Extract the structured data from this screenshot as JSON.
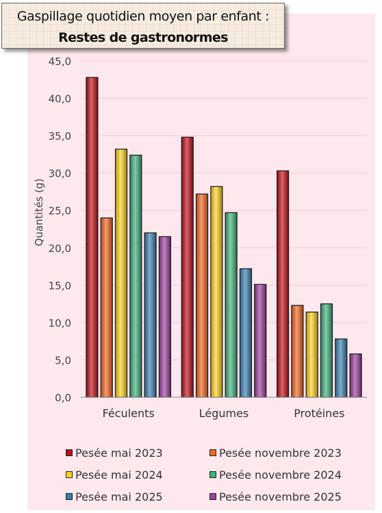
{
  "title": {
    "line1": "Gaspillage quotidien moyen par enfant :",
    "line2": "Restes de gastronormes"
  },
  "colors": {
    "plot_bg": "#fde8ee",
    "series": [
      "#c0101a",
      "#f26522",
      "#ffd21f",
      "#3fb07a",
      "#3a7fb0",
      "#9d3fa0"
    ]
  },
  "chart_data": {
    "type": "bar",
    "categories": [
      "Féculents",
      "Légumes",
      "Protéines"
    ],
    "ylabel": "Quantités (g)",
    "ylim": [
      0,
      45
    ],
    "yticks": [
      "0,0",
      "5,0",
      "10,0",
      "15,0",
      "20,0",
      "25,0",
      "30,0",
      "35,0",
      "40,0",
      "45,0"
    ],
    "grid": true,
    "legend_position": "bottom",
    "series": [
      {
        "name": "Pesée mai 2023",
        "values": [
          42.8,
          34.8,
          30.3
        ]
      },
      {
        "name": "Pesée novembre 2023",
        "values": [
          24.0,
          27.2,
          12.3
        ]
      },
      {
        "name": "Pesée mai 2024",
        "values": [
          33.2,
          28.2,
          11.4
        ]
      },
      {
        "name": "Pesée novembre 2024",
        "values": [
          32.4,
          24.7,
          12.5
        ]
      },
      {
        "name": "Pesée mai 2025",
        "values": [
          22.0,
          17.2,
          7.8
        ]
      },
      {
        "name": "Pesée novembre 2025",
        "values": [
          21.5,
          15.1,
          5.8
        ]
      }
    ]
  }
}
